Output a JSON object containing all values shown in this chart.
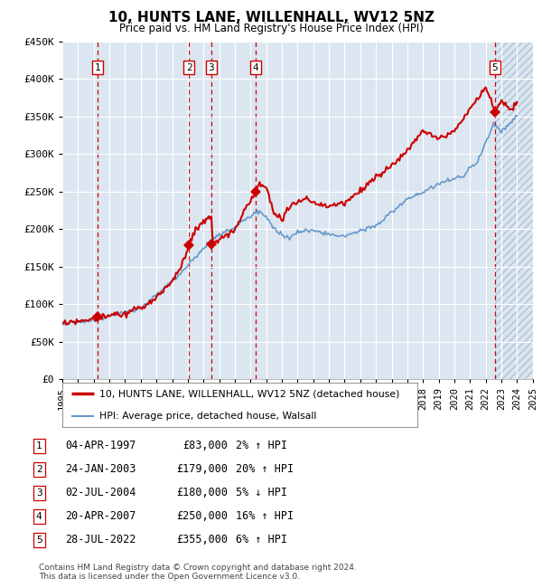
{
  "title": "10, HUNTS LANE, WILLENHALL, WV12 5NZ",
  "subtitle": "Price paid vs. HM Land Registry's House Price Index (HPI)",
  "legend_line1": "10, HUNTS LANE, WILLENHALL, WV12 5NZ (detached house)",
  "legend_line2": "HPI: Average price, detached house, Walsall",
  "footer1": "Contains HM Land Registry data © Crown copyright and database right 2024.",
  "footer2": "This data is licensed under the Open Government Licence v3.0.",
  "transactions": [
    {
      "num": 1,
      "date": "1997-04-04",
      "price": 83000,
      "hpi_pct": "2% ↑ HPI"
    },
    {
      "num": 2,
      "date": "2003-01-24",
      "price": 179000,
      "hpi_pct": "20% ↑ HPI"
    },
    {
      "num": 3,
      "date": "2004-07-02",
      "price": 180000,
      "hpi_pct": "5% ↓ HPI"
    },
    {
      "num": 4,
      "date": "2007-04-20",
      "price": 250000,
      "hpi_pct": "16% ↑ HPI"
    },
    {
      "num": 5,
      "date": "2022-07-28",
      "price": 355000,
      "hpi_pct": "6% ↑ HPI"
    }
  ],
  "transaction_dates_str": [
    "04-APR-1997",
    "24-JAN-2003",
    "02-JUL-2004",
    "20-APR-2007",
    "28-JUL-2022"
  ],
  "red_color": "#cc0000",
  "blue_color": "#6699cc",
  "bg_color": "#dce6f0",
  "white_color": "#ffffff",
  "grid_color": "#ffffff",
  "ylim": [
    0,
    450000
  ],
  "yticks": [
    0,
    50000,
    100000,
    150000,
    200000,
    250000,
    300000,
    350000,
    400000,
    450000
  ],
  "hpi_anchors": [
    [
      1995.0,
      74000
    ],
    [
      1997.25,
      80000
    ],
    [
      2000.0,
      95000
    ],
    [
      2002.5,
      140000
    ],
    [
      2004.5,
      185000
    ],
    [
      2007.6,
      225000
    ],
    [
      2008.8,
      195000
    ],
    [
      2009.5,
      190000
    ],
    [
      2010.5,
      200000
    ],
    [
      2011.5,
      195000
    ],
    [
      2013.0,
      190000
    ],
    [
      2015.0,
      205000
    ],
    [
      2017.0,
      240000
    ],
    [
      2019.0,
      260000
    ],
    [
      2020.5,
      270000
    ],
    [
      2021.5,
      290000
    ],
    [
      2022.5,
      340000
    ],
    [
      2023.0,
      330000
    ],
    [
      2024.0,
      350000
    ]
  ],
  "red_anchors": [
    [
      1995.0,
      74000
    ],
    [
      1997.0,
      80000
    ],
    [
      1997.3,
      83000
    ],
    [
      1999.0,
      88000
    ],
    [
      2000.5,
      100000
    ],
    [
      2001.5,
      118000
    ],
    [
      2002.5,
      145000
    ],
    [
      2003.1,
      179000
    ],
    [
      2003.5,
      200000
    ],
    [
      2004.0,
      210000
    ],
    [
      2004.5,
      215000
    ],
    [
      2004.6,
      180000
    ],
    [
      2005.0,
      185000
    ],
    [
      2006.0,
      200000
    ],
    [
      2007.3,
      250000
    ],
    [
      2007.5,
      260000
    ],
    [
      2008.0,
      255000
    ],
    [
      2008.5,
      220000
    ],
    [
      2009.0,
      215000
    ],
    [
      2009.5,
      230000
    ],
    [
      2010.0,
      235000
    ],
    [
      2010.5,
      240000
    ],
    [
      2011.0,
      235000
    ],
    [
      2012.0,
      230000
    ],
    [
      2013.0,
      235000
    ],
    [
      2014.0,
      250000
    ],
    [
      2015.0,
      270000
    ],
    [
      2016.0,
      285000
    ],
    [
      2017.0,
      305000
    ],
    [
      2018.0,
      330000
    ],
    [
      2019.0,
      320000
    ],
    [
      2020.0,
      330000
    ],
    [
      2021.0,
      360000
    ],
    [
      2022.0,
      390000
    ],
    [
      2022.6,
      355000
    ],
    [
      2023.0,
      370000
    ],
    [
      2023.5,
      360000
    ],
    [
      2024.0,
      370000
    ]
  ],
  "trans_x": [
    1997.25,
    2003.083,
    2004.5,
    2007.333,
    2022.583
  ],
  "xmin": 1995,
  "xmax": 2025
}
